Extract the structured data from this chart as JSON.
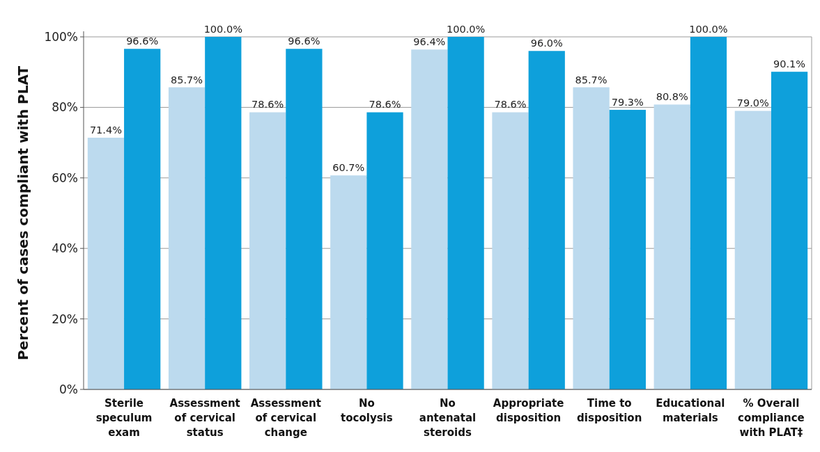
{
  "chart_data": {
    "type": "bar",
    "ylabel": "Percent of cases compliant with PLAT",
    "categories": [
      "Sterile speculum exam",
      "Assessment of cervical status",
      "Assessment of cervical change",
      "No tocolysis",
      "No antenatal steroids",
      "Appropriate disposition",
      "Time to disposition",
      "Educational materials",
      "% Overall compliance with PLAT‡"
    ],
    "series": [
      {
        "color": "#bcdaee",
        "values": [
          71.4,
          85.7,
          78.6,
          60.7,
          96.4,
          78.6,
          85.7,
          80.8,
          79.0
        ],
        "value_labels": [
          "71.4%",
          "85.7%",
          "78.6%",
          "60.7%",
          "96.4%",
          "78.6%",
          "85.7%",
          "80.8%",
          "79.0%"
        ]
      },
      {
        "color": "#0ea0db",
        "values": [
          96.6,
          100.0,
          96.6,
          78.6,
          100.0,
          96.0,
          79.3,
          100.0,
          90.1
        ],
        "value_labels": [
          "96.6%",
          "100.0%",
          "96.6%",
          "78.6%",
          "100.0%",
          "96.0%",
          "79.3%",
          "100.0%",
          "90.1%"
        ]
      }
    ],
    "ylim": [
      0,
      100
    ],
    "yticks": [
      {
        "value": 0,
        "label": "0%"
      },
      {
        "value": 20,
        "label": "20%"
      },
      {
        "value": 40,
        "label": "40%"
      },
      {
        "value": 60,
        "label": "60%"
      },
      {
        "value": 80,
        "label": "80%"
      },
      {
        "value": 100,
        "label": "100%"
      }
    ],
    "grid": "y"
  }
}
